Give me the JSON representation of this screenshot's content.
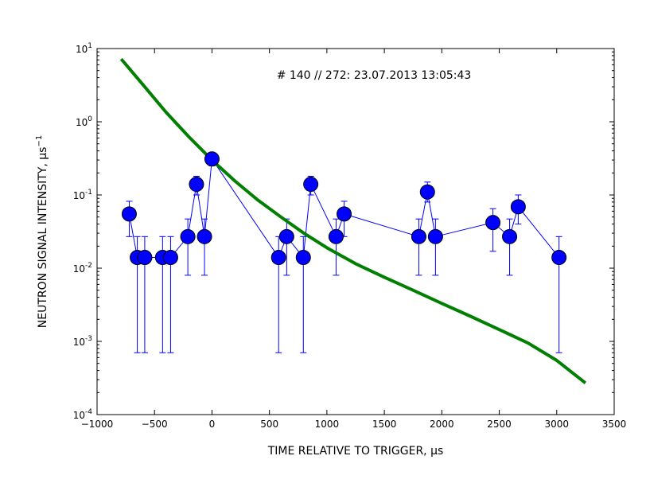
{
  "chart_data": {
    "type": "scatter",
    "title": "",
    "annotation": "# 140 // 272: 23.07.2013 13:05:43",
    "xlabel": "TIME RELATIVE TO TRIGGER, μs",
    "ylabel": "NEUTRON SIGNAL INTENSITY, μs",
    "ylabel_superscript": "−1",
    "xlim": [
      -1000,
      3500
    ],
    "ylim": [
      0.0001,
      10
    ],
    "yscale": "log",
    "x_ticks": [
      -1000,
      -500,
      0,
      500,
      1000,
      1500,
      2000,
      2500,
      3000,
      3500
    ],
    "x_tick_labels": [
      "−1000",
      "−500",
      "0",
      "500",
      "1000",
      "1500",
      "2000",
      "2500",
      "3000",
      "3500"
    ],
    "y_ticks": [
      {
        "value": 10,
        "base": "10",
        "exp": "1"
      },
      {
        "value": 1,
        "base": "10",
        "exp": "0"
      },
      {
        "value": 0.1,
        "base": "10",
        "exp": "-1"
      },
      {
        "value": 0.01,
        "base": "10",
        "exp": "-2"
      },
      {
        "value": 0.001,
        "base": "10",
        "exp": "-3"
      },
      {
        "value": 0.0001,
        "base": "10",
        "exp": "-4"
      }
    ],
    "grid": false,
    "series": [
      {
        "kind": "points-with-errorbars",
        "color": "#0000ff",
        "points": [
          {
            "x": -720,
            "y": 0.055,
            "ylo": 0.027,
            "yhi": 0.082
          },
          {
            "x": -650,
            "y": 0.014,
            "ylo": 0.0007,
            "yhi": 0.027
          },
          {
            "x": -585,
            "y": 0.014,
            "ylo": 0.0007,
            "yhi": 0.027
          },
          {
            "x": -430,
            "y": 0.014,
            "ylo": 0.0007,
            "yhi": 0.027
          },
          {
            "x": -360,
            "y": 0.014,
            "ylo": 0.0007,
            "yhi": 0.027
          },
          {
            "x": -210,
            "y": 0.027,
            "ylo": 0.008,
            "yhi": 0.047
          },
          {
            "x": -135,
            "y": 0.14,
            "ylo": 0.1,
            "yhi": 0.18
          },
          {
            "x": -65,
            "y": 0.027,
            "ylo": 0.008,
            "yhi": 0.047
          },
          {
            "x": 0,
            "y": 0.31,
            "ylo": 0.25,
            "yhi": 0.37
          },
          {
            "x": 580,
            "y": 0.014,
            "ylo": 0.0007,
            "yhi": 0.027
          },
          {
            "x": 650,
            "y": 0.027,
            "ylo": 0.008,
            "yhi": 0.047
          },
          {
            "x": 795,
            "y": 0.014,
            "ylo": 0.0007,
            "yhi": 0.027
          },
          {
            "x": 860,
            "y": 0.14,
            "ylo": 0.1,
            "yhi": 0.18
          },
          {
            "x": 1080,
            "y": 0.027,
            "ylo": 0.008,
            "yhi": 0.047
          },
          {
            "x": 1150,
            "y": 0.055,
            "ylo": 0.027,
            "yhi": 0.082
          },
          {
            "x": 1800,
            "y": 0.027,
            "ylo": 0.008,
            "yhi": 0.047
          },
          {
            "x": 1875,
            "y": 0.11,
            "ylo": 0.08,
            "yhi": 0.15
          },
          {
            "x": 1945,
            "y": 0.027,
            "ylo": 0.008,
            "yhi": 0.047
          },
          {
            "x": 2445,
            "y": 0.042,
            "ylo": 0.017,
            "yhi": 0.065
          },
          {
            "x": 2590,
            "y": 0.027,
            "ylo": 0.008,
            "yhi": 0.047
          },
          {
            "x": 2665,
            "y": 0.069,
            "ylo": 0.04,
            "yhi": 0.1
          },
          {
            "x": 3020,
            "y": 0.014,
            "ylo": 0.0007,
            "yhi": 0.027
          }
        ]
      },
      {
        "kind": "line",
        "color": "#007f00",
        "points": [
          {
            "x": -790,
            "y": 7.2
          },
          {
            "x": -600,
            "y": 3.2
          },
          {
            "x": -400,
            "y": 1.35
          },
          {
            "x": -200,
            "y": 0.62
          },
          {
            "x": 0,
            "y": 0.3
          },
          {
            "x": 200,
            "y": 0.155
          },
          {
            "x": 400,
            "y": 0.085
          },
          {
            "x": 600,
            "y": 0.05
          },
          {
            "x": 800,
            "y": 0.03
          },
          {
            "x": 1000,
            "y": 0.019
          },
          {
            "x": 1250,
            "y": 0.0115
          },
          {
            "x": 1500,
            "y": 0.0075
          },
          {
            "x": 1750,
            "y": 0.005
          },
          {
            "x": 2000,
            "y": 0.0033
          },
          {
            "x": 2250,
            "y": 0.0022
          },
          {
            "x": 2500,
            "y": 0.00145
          },
          {
            "x": 2750,
            "y": 0.00095
          },
          {
            "x": 3000,
            "y": 0.00055
          },
          {
            "x": 3250,
            "y": 0.00027
          }
        ]
      }
    ]
  }
}
